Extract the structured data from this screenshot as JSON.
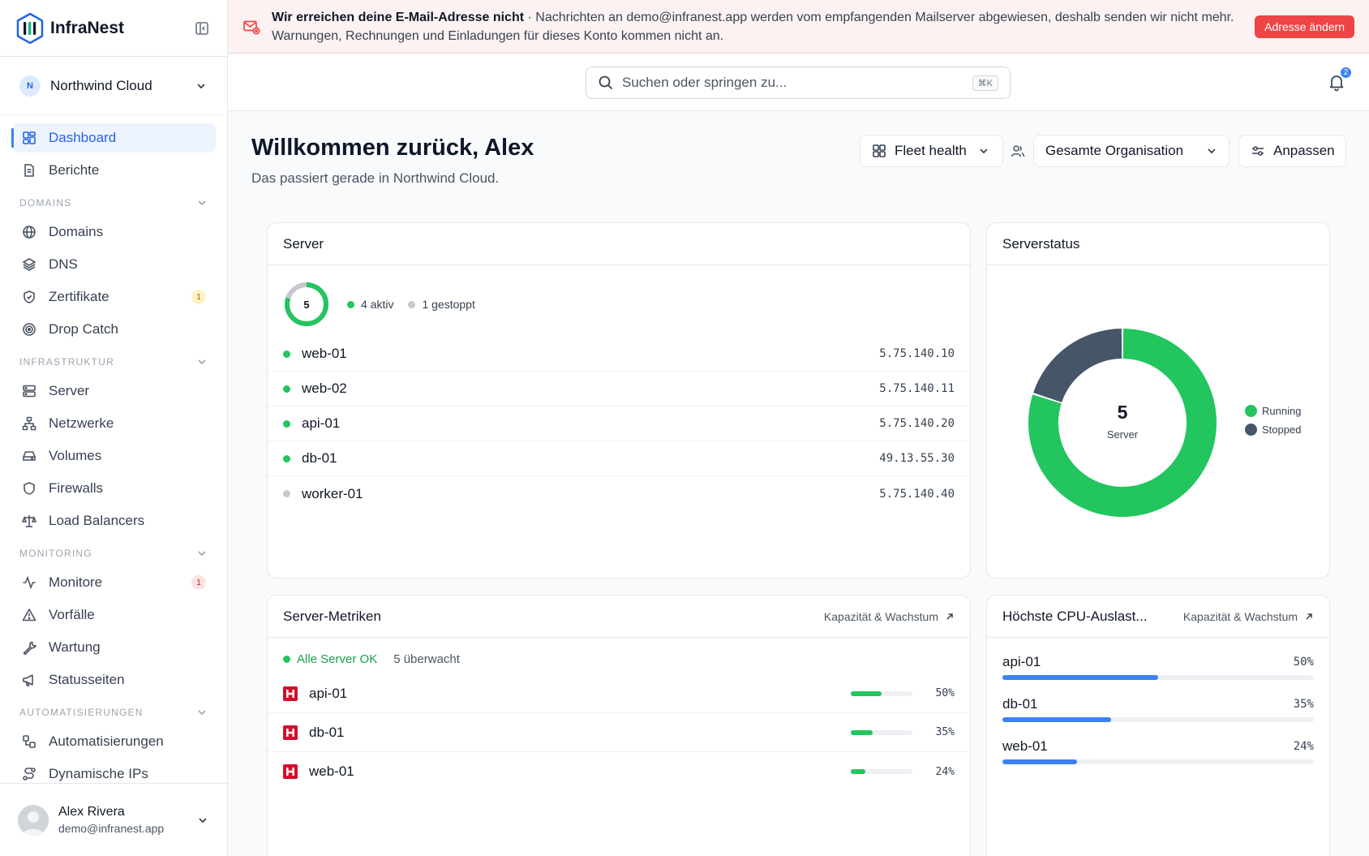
{
  "app": {
    "name": "InfraNest"
  },
  "org": {
    "initial": "N",
    "name": "Northwind Cloud"
  },
  "nav": {
    "top": [
      {
        "label": "Dashboard",
        "icon": "dashboard-icon",
        "active": true
      },
      {
        "label": "Berichte",
        "icon": "reports-icon"
      }
    ],
    "sections": [
      {
        "title": "DOMAINS",
        "items": [
          {
            "label": "Domains",
            "icon": "globe-icon"
          },
          {
            "label": "DNS",
            "icon": "layers-icon"
          },
          {
            "label": "Zertifikate",
            "icon": "shield-check-icon",
            "badge": "1",
            "badge_color": "amber"
          },
          {
            "label": "Drop Catch",
            "icon": "target-icon"
          }
        ]
      },
      {
        "title": "INFRASTRUKTUR",
        "items": [
          {
            "label": "Server",
            "icon": "server-icon"
          },
          {
            "label": "Netzwerke",
            "icon": "network-icon"
          },
          {
            "label": "Volumes",
            "icon": "drive-icon"
          },
          {
            "label": "Firewalls",
            "icon": "shield-icon"
          },
          {
            "label": "Load Balancers",
            "icon": "scale-icon"
          }
        ]
      },
      {
        "title": "MONITORING",
        "items": [
          {
            "label": "Monitore",
            "icon": "activity-icon",
            "badge": "1",
            "badge_color": "red"
          },
          {
            "label": "Vorfälle",
            "icon": "alert-triangle-icon"
          },
          {
            "label": "Wartung",
            "icon": "wrench-icon"
          },
          {
            "label": "Statusseiten",
            "icon": "megaphone-icon"
          }
        ]
      },
      {
        "title": "AUTOMATISIERUNGEN",
        "items": [
          {
            "label": "Automatisierungen",
            "icon": "workflow-icon"
          },
          {
            "label": "Dynamische IPs",
            "icon": "route-icon"
          }
        ]
      }
    ]
  },
  "user": {
    "name": "Alex Rivera",
    "email": "demo@infranest.app"
  },
  "banner": {
    "title": "Wir erreichen deine E-Mail-Adresse nicht",
    "message": " · Nachrichten an demo@infranest.app werden vom empfangenden Mailserver abgewiesen, deshalb senden wir nicht mehr. Warnungen, Rechnungen und Einladungen für dieses Konto kommen nicht an.",
    "button": "Adresse ändern"
  },
  "search": {
    "placeholder": "Suchen oder springen zu...",
    "shortcut": "⌘K"
  },
  "notifications": {
    "count": "2"
  },
  "header": {
    "title": "Willkommen zurück, Alex",
    "subtitle": "Das passiert gerade in Northwind Cloud.",
    "view_button": "Fleet health",
    "scope_button": "Gesamte Organisation",
    "customize_button": "Anpassen"
  },
  "server_card": {
    "title": "Server",
    "total": "5",
    "active_label": "4 aktiv",
    "stopped_label": "1 gestoppt",
    "active_fraction": 0.8,
    "rows": [
      {
        "name": "web-01",
        "ip": "5.75.140.10",
        "status": "running"
      },
      {
        "name": "web-02",
        "ip": "5.75.140.11",
        "status": "running"
      },
      {
        "name": "api-01",
        "ip": "5.75.140.20",
        "status": "running"
      },
      {
        "name": "db-01",
        "ip": "49.13.55.30",
        "status": "running"
      },
      {
        "name": "worker-01",
        "ip": "5.75.140.40",
        "status": "stopped"
      }
    ]
  },
  "status_card": {
    "title": "Serverstatus",
    "center_value": "5",
    "center_label": "Server",
    "legend": [
      {
        "label": "Running",
        "color": "#22c55e",
        "value": 4
      },
      {
        "label": "Stopped",
        "color": "#475569",
        "value": 1
      }
    ]
  },
  "metrics_card": {
    "title": "Server-Metriken",
    "link": "Kapazität & Wachstum",
    "ok_label": "Alle Server OK",
    "monitored_label": "5 überwacht",
    "rows": [
      {
        "name": "api-01",
        "percent_label": "50%",
        "value": 50
      },
      {
        "name": "db-01",
        "percent_label": "35%",
        "value": 35
      },
      {
        "name": "web-01",
        "percent_label": "24%",
        "value": 24
      }
    ]
  },
  "cpu_card": {
    "title": "Höchste CPU-Auslast...",
    "link": "Kapazität & Wachstum",
    "rows": [
      {
        "name": "api-01",
        "percent_label": "50%",
        "value": 50
      },
      {
        "name": "db-01",
        "percent_label": "35%",
        "value": 35
      },
      {
        "name": "web-01",
        "percent_label": "24%",
        "value": 24
      }
    ]
  },
  "colors": {
    "accent": "#3b82f6",
    "success": "#22c55e",
    "danger": "#ef4444",
    "stopped": "#475569"
  }
}
